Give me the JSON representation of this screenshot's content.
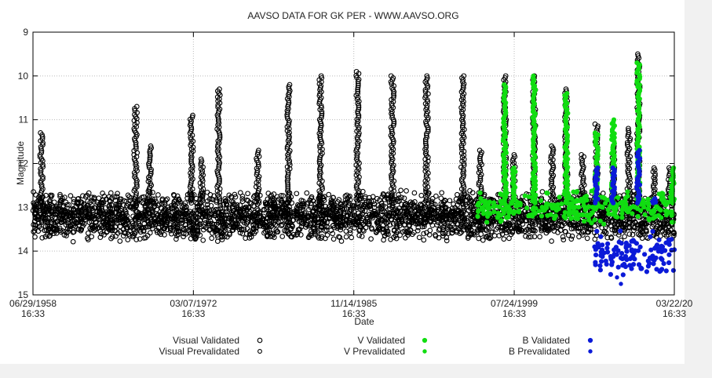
{
  "chart_data": {
    "type": "scatter",
    "title": "AAVSO DATA FOR GK PER - WWW.AAVSO.ORG",
    "xlabel": "Date",
    "ylabel": "Magnitude",
    "x_axis": {
      "kind": "date",
      "range": [
        "1958-06-29",
        "2013-03-22"
      ],
      "ticks": [
        {
          "date": "1958-06-29",
          "label": [
            "06/29/1958",
            "16:33"
          ]
        },
        {
          "date": "1972-03-07",
          "label": [
            "03/07/1972",
            "16:33"
          ]
        },
        {
          "date": "1985-11-14",
          "label": [
            "11/14/1985",
            "16:33"
          ]
        },
        {
          "date": "1999-07-24",
          "label": [
            "07/24/1999",
            "16:33"
          ]
        },
        {
          "date": "2013-03-22",
          "label": [
            "03/22/20",
            "16:33"
          ]
        }
      ]
    },
    "y_axis": {
      "range": [
        9,
        15
      ],
      "inverted": true,
      "ticks": [
        9,
        10,
        11,
        12,
        13,
        14,
        15
      ]
    },
    "grid": true,
    "legend_position": "bottom",
    "series": [
      {
        "name": "Visual Validated",
        "color": "#000000",
        "marker": "open-circle",
        "quiescence": {
          "range": [
            "1958-06-29",
            "2013-03-22"
          ],
          "mag": [
            12.6,
            13.8
          ]
        },
        "outbursts": [
          {
            "date": "1959-03-20",
            "peak": 11.3
          },
          {
            "date": "1967-04-01",
            "peak": 10.7
          },
          {
            "date": "1968-06-15",
            "peak": 11.6
          },
          {
            "date": "1972-01-10",
            "peak": 10.9
          },
          {
            "date": "1972-11-20",
            "peak": 11.9
          },
          {
            "date": "1974-05-01",
            "peak": 10.3
          },
          {
            "date": "1977-09-01",
            "peak": 11.7
          },
          {
            "date": "1980-04-20",
            "peak": 10.2
          },
          {
            "date": "1983-01-20",
            "peak": 10.0
          },
          {
            "date": "1986-03-15",
            "peak": 9.9
          },
          {
            "date": "1989-03-01",
            "peak": 10.0
          },
          {
            "date": "1992-02-01",
            "peak": 10.0
          },
          {
            "date": "1995-03-01",
            "peak": 10.0
          },
          {
            "date": "1996-09-01",
            "peak": 11.7
          },
          {
            "date": "1998-10-01",
            "peak": 10.0
          },
          {
            "date": "1999-07-10",
            "peak": 11.8
          },
          {
            "date": "2001-04-01",
            "peak": 10.0
          },
          {
            "date": "2002-10-15",
            "peak": 11.6
          },
          {
            "date": "2004-01-01",
            "peak": 10.3
          },
          {
            "date": "2005-06-01",
            "peak": 11.8
          },
          {
            "date": "2006-08-01",
            "peak": 11.1
          },
          {
            "date": "2008-01-01",
            "peak": 11.6
          },
          {
            "date": "2009-05-01",
            "peak": 11.2
          },
          {
            "date": "2010-03-01",
            "peak": 9.5
          },
          {
            "date": "2011-07-01",
            "peak": 12.1
          },
          {
            "date": "2012-11-01",
            "peak": 12.1
          }
        ]
      },
      {
        "name": "Visual Prevalidated",
        "color": "#000000",
        "marker": "open-circle-small",
        "points": [
          {
            "date": "2011-04-01",
            "mag": 13.0
          },
          {
            "date": "2012-02-01",
            "mag": 13.3
          }
        ]
      },
      {
        "name": "V Validated",
        "color": "#11dd11",
        "marker": "filled-circle",
        "quiescence": {
          "range": [
            "1996-06-01",
            "2013-03-22"
          ],
          "mag": [
            12.6,
            13.4
          ]
        },
        "outbursts": [
          {
            "date": "1998-10-01",
            "peak": 10.2
          },
          {
            "date": "1999-07-10",
            "peak": 12.1
          },
          {
            "date": "2001-04-01",
            "peak": 10.0
          },
          {
            "date": "2004-01-01",
            "peak": 10.4
          },
          {
            "date": "2006-08-01",
            "peak": 11.3
          },
          {
            "date": "2008-01-01",
            "peak": 11.0
          },
          {
            "date": "2010-03-01",
            "peak": 9.7
          },
          {
            "date": "2013-02-01",
            "peak": 12.1
          }
        ]
      },
      {
        "name": "V Prevalidated",
        "color": "#11dd11",
        "marker": "filled-circle-small",
        "points": [
          {
            "date": "2012-06-01",
            "mag": 12.9
          },
          {
            "date": "2013-01-15",
            "mag": 13.1
          }
        ]
      },
      {
        "name": "B Validated",
        "color": "#0b1ad8",
        "marker": "filled-circle",
        "quiescence": {
          "range": [
            "2006-06-01",
            "2013-03-22"
          ],
          "mag": [
            13.5,
            14.6
          ]
        },
        "outbursts": [
          {
            "date": "2006-08-01",
            "peak": 12.1
          },
          {
            "date": "2008-01-01",
            "peak": 12.1
          },
          {
            "date": "2010-03-01",
            "peak": 11.7
          },
          {
            "date": "2011-07-01",
            "peak": 12.8
          }
        ]
      },
      {
        "name": "B Prevalidated",
        "color": "#0b1ad8",
        "marker": "filled-circle-small",
        "points": [
          {
            "date": "2008-05-01",
            "mag": 14.6
          },
          {
            "date": "2008-09-01",
            "mag": 14.75
          }
        ]
      }
    ]
  }
}
